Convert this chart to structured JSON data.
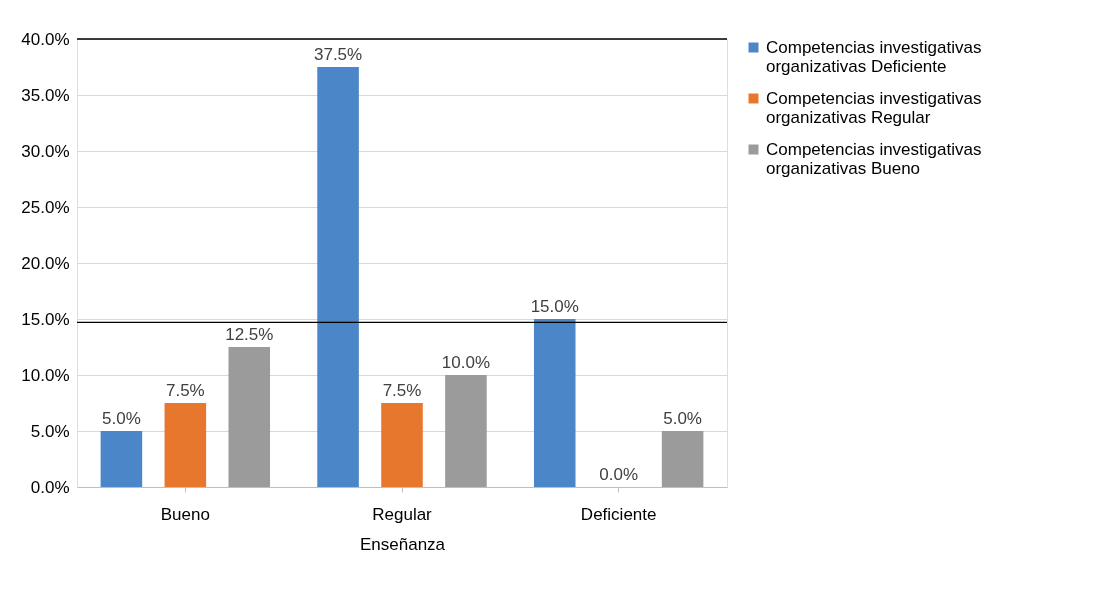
{
  "chart_data": {
    "type": "bar",
    "xlabel": "Enseñanza",
    "categories": [
      "Bueno",
      "Regular",
      "Deficiente"
    ],
    "series": [
      {
        "name": "Competencias investigativas organizativas Deficiente",
        "color": "#4a86c8",
        "values": [
          5.0,
          37.5,
          15.0
        ],
        "value_labels": [
          "5.0%",
          "37.5%",
          "15.0%"
        ]
      },
      {
        "name": "Competencias investigativas organizativas Regular",
        "color": "#e8772e",
        "values": [
          7.5,
          7.5,
          0.0
        ],
        "value_labels": [
          "7.5%",
          "7.5%",
          "0.0%"
        ]
      },
      {
        "name": "Competencias investigativas organizativas Bueno",
        "color": "#9b9b9b",
        "values": [
          12.5,
          10.0,
          5.0
        ],
        "value_labels": [
          "12.5%",
          "10.0%",
          "5.0%"
        ]
      }
    ],
    "ylim": [
      0,
      40
    ],
    "yticks": [
      {
        "value": 0,
        "label": "0.0%"
      },
      {
        "value": 5,
        "label": "5.0%"
      },
      {
        "value": 10,
        "label": "10.0%"
      },
      {
        "value": 15,
        "label": "15.0%"
      },
      {
        "value": 20,
        "label": "20.0%"
      },
      {
        "value": 25,
        "label": "25.0%"
      },
      {
        "value": 30,
        "label": "30.0%"
      },
      {
        "value": 35,
        "label": "35.0%"
      },
      {
        "value": 40,
        "label": "40.0%"
      }
    ],
    "ref_lines": [
      {
        "axis": "y",
        "value": 40,
        "color": "#000000"
      },
      {
        "axis": "y",
        "value": 14.7,
        "color": "#000000"
      }
    ],
    "grid": "y",
    "legend": "right"
  }
}
